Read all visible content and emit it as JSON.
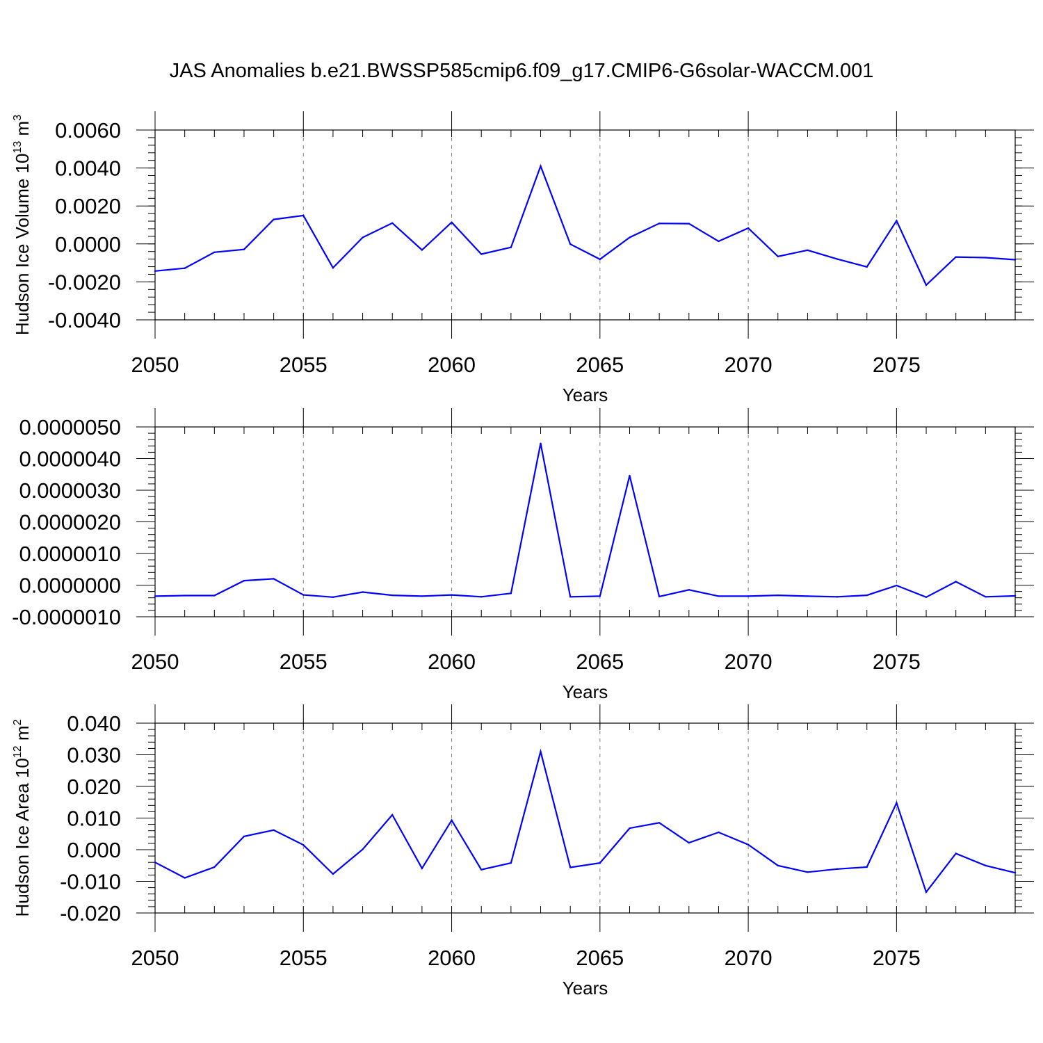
{
  "title": "JAS Anomalies b.e21.BWSSP585cmip6.f09_g17.CMIP6-G6solar-WACCM.001",
  "colors": {
    "line": "#0000ff",
    "axis": "#000000",
    "grid": "#808080"
  },
  "chart_data": [
    {
      "type": "line",
      "xlabel": "Years",
      "ylabel": "Hudson Ice Volume 10",
      "ylabel_sup": "13",
      "ylabel_unit": "m",
      "ylabel_unit_sup": "3",
      "xlim": [
        2050,
        2079
      ],
      "ylim": [
        -0.004,
        0.006
      ],
      "x_ticks": [
        2050,
        2055,
        2060,
        2065,
        2070,
        2075
      ],
      "x_tick_labels": [
        "2050",
        "2055",
        "2060",
        "2065",
        "2070",
        "2075"
      ],
      "y_ticks": [
        -0.004,
        -0.002,
        0.0,
        0.002,
        0.004,
        0.006
      ],
      "y_tick_labels": [
        "-0.0040",
        "-0.0020",
        "0.0000",
        "0.0020",
        "0.0040",
        "0.0060"
      ],
      "grid_x": true,
      "x": [
        2050,
        2051,
        2052,
        2053,
        2054,
        2055,
        2056,
        2057,
        2058,
        2059,
        2060,
        2061,
        2062,
        2063,
        2064,
        2065,
        2066,
        2067,
        2068,
        2069,
        2070,
        2071,
        2072,
        2073,
        2074,
        2075,
        2076,
        2077,
        2078,
        2079
      ],
      "values": [
        -0.00143,
        -0.00128,
        -0.00044,
        -0.00029,
        0.00129,
        0.0015,
        -0.00126,
        0.00034,
        0.0011,
        -0.00032,
        0.00114,
        -0.00054,
        -0.00018,
        0.0041,
        -1e-05,
        -0.00081,
        0.00034,
        0.00108,
        0.00107,
        0.00014,
        0.00083,
        -0.00066,
        -0.00033,
        -0.0008,
        -0.00121,
        0.00122,
        -0.00217,
        -0.00069,
        -0.00072,
        -0.00083
      ]
    },
    {
      "type": "line",
      "xlabel": "Years",
      "ylabel": "",
      "xlim": [
        2050,
        2079
      ],
      "ylim": [
        -1e-06,
        5e-06
      ],
      "x_ticks": [
        2050,
        2055,
        2060,
        2065,
        2070,
        2075
      ],
      "x_tick_labels": [
        "2050",
        "2055",
        "2060",
        "2065",
        "2070",
        "2075"
      ],
      "y_ticks": [
        -1e-06,
        0.0,
        1e-06,
        2e-06,
        3e-06,
        4e-06,
        5e-06
      ],
      "y_tick_labels": [
        "-0.0000010",
        "0.0000000",
        "0.0000010",
        "0.0000020",
        "0.0000030",
        "0.0000040",
        "0.0000050"
      ],
      "grid_x": true,
      "x": [
        2050,
        2051,
        2052,
        2053,
        2054,
        2055,
        2056,
        2057,
        2058,
        2059,
        2060,
        2061,
        2062,
        2063,
        2064,
        2065,
        2066,
        2067,
        2068,
        2069,
        2070,
        2071,
        2072,
        2073,
        2074,
        2075,
        2076,
        2077,
        2078,
        2079
      ],
      "values": [
        -3.5e-07,
        -3.3e-07,
        -3.3e-07,
        1.4e-07,
        2e-07,
        -3.1e-07,
        -3.8e-07,
        -2.2e-07,
        -3.2e-07,
        -3.5e-07,
        -3.1e-07,
        -3.7e-07,
        -2.6e-07,
        4.48e-06,
        -3.7e-07,
        -3.5e-07,
        3.46e-06,
        -3.6e-07,
        -1.5e-07,
        -3.5e-07,
        -3.5e-07,
        -3.2e-07,
        -3.5e-07,
        -3.7e-07,
        -3.2e-07,
        -1e-08,
        -3.8e-07,
        1.1e-07,
        -3.7e-07,
        -3.4e-07
      ]
    },
    {
      "type": "line",
      "xlabel": "Years",
      "ylabel": "Hudson Ice Area 10",
      "ylabel_sup": "12",
      "ylabel_unit": "m",
      "ylabel_unit_sup": "2",
      "xlim": [
        2050,
        2079
      ],
      "ylim": [
        -0.02,
        0.04
      ],
      "x_ticks": [
        2050,
        2055,
        2060,
        2065,
        2070,
        2075
      ],
      "x_tick_labels": [
        "2050",
        "2055",
        "2060",
        "2065",
        "2070",
        "2075"
      ],
      "y_ticks": [
        -0.02,
        -0.01,
        0.0,
        0.01,
        0.02,
        0.03,
        0.04
      ],
      "y_tick_labels": [
        "-0.020",
        "-0.010",
        "0.000",
        "0.010",
        "0.020",
        "0.030",
        "0.040"
      ],
      "grid_x": true,
      "x": [
        2050,
        2051,
        2052,
        2053,
        2054,
        2055,
        2056,
        2057,
        2058,
        2059,
        2060,
        2061,
        2062,
        2063,
        2064,
        2065,
        2066,
        2067,
        2068,
        2069,
        2070,
        2071,
        2072,
        2073,
        2074,
        2075,
        2076,
        2077,
        2078,
        2079
      ],
      "values": [
        -0.004,
        -0.0089,
        -0.0055,
        0.0042,
        0.0062,
        0.0015,
        -0.0077,
        0.0001,
        0.011,
        -0.0059,
        0.0093,
        -0.0063,
        -0.0042,
        0.031,
        -0.0056,
        -0.0042,
        0.0068,
        0.0085,
        0.0022,
        0.0055,
        0.0016,
        -0.005,
        -0.0071,
        -0.0061,
        -0.0055,
        0.0148,
        -0.0134,
        -0.0012,
        -0.005,
        -0.0073
      ]
    }
  ]
}
